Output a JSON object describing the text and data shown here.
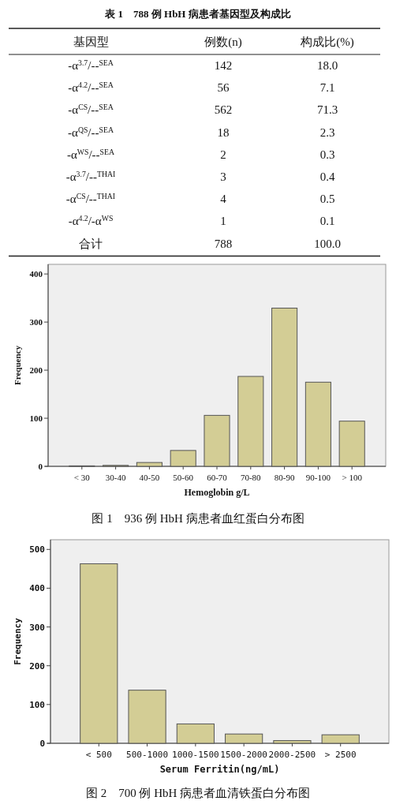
{
  "chart_data": [
    {
      "type": "other",
      "title": "表 1　788 例 HbH 病患者基因型及构成比",
      "xlabel": "基因型",
      "categories": [
        "-α$^{3.7}$/--$^{SEA}$",
        "-α$^{4.2}$/--$^{SEA}$",
        "-α$^{CS}$/--$^{SEA}$",
        "-α$^{QS}$/--$^{SEA}$",
        "-α$^{WS}$/--$^{SEA}$",
        "-α$^{3.7}$/--$^{THAI}$",
        "-α$^{CS}$/--$^{THAI}$",
        "-α$^{4.2}$/-α$^{WS}$",
        "合计"
      ],
      "series": [
        {
          "name": "例数(n)",
          "values": [
            142,
            56,
            562,
            18,
            2,
            3,
            4,
            1,
            788
          ],
          "value_labels": [
            "142",
            "56",
            "562",
            "18",
            "2",
            "3",
            "4",
            "1",
            "788"
          ]
        },
        {
          "name": "构成比(%)",
          "values": [
            18.0,
            7.1,
            71.3,
            2.3,
            0.3,
            0.4,
            0.5,
            0.1,
            100.0
          ],
          "value_labels": [
            "18.0",
            "7.1",
            "71.3",
            "2.3",
            "0.3",
            "0.4",
            "0.5",
            "0.1",
            "100.0"
          ]
        }
      ]
    },
    {
      "type": "bar",
      "xlabel": "Hemoglobin g/L",
      "ylabel": "Frequency",
      "color": "#d3cd95",
      "categories": [
        "< 30",
        "30-40",
        "40-50",
        "50-60",
        "60-70",
        "70-80",
        "80-90",
        "90-100",
        "> 100"
      ],
      "values": [
        1,
        2,
        8,
        33,
        106,
        187,
        329,
        175,
        94
      ],
      "ylim": [
        0,
        420
      ],
      "yticks": [
        0,
        100,
        200,
        300,
        400
      ],
      "annotations": [
        "图 1　936 例 HbH 病患者血红蛋白分布图"
      ]
    },
    {
      "type": "bar",
      "xlabel": "Serum Ferritin(ng/mL)",
      "ylabel": "Frequency",
      "color": "#d3cd95",
      "categories": [
        "< 500",
        "500-1000",
        "1000-1500",
        "1500-2000",
        "2000-2500",
        "> 2500"
      ],
      "values": [
        463,
        137,
        50,
        24,
        7,
        22
      ],
      "ylim": [
        0,
        525
      ],
      "yticks": [
        0,
        100,
        200,
        300,
        400,
        500
      ],
      "annotations": [
        "图 2　700 例 HbH 病患者血清铁蛋白分布图"
      ]
    }
  ]
}
